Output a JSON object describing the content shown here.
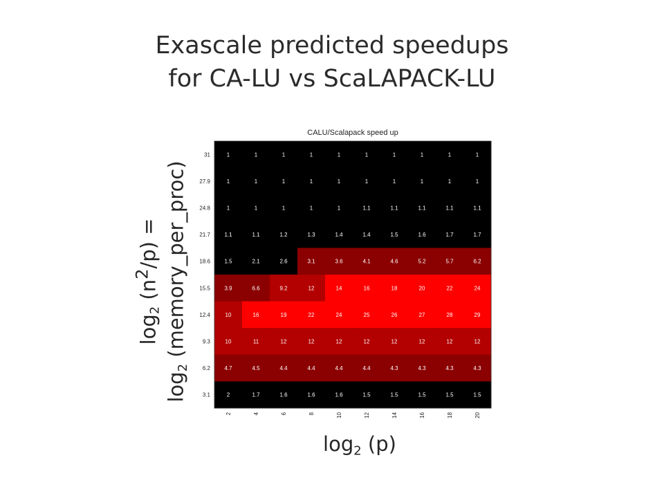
{
  "slide": {
    "title_line1": "Exascale  predicted speedups",
    "title_line2": "for CA-LU vs ScaLAPACK-LU",
    "ylabel_line1_prefix": "log",
    "ylabel_line1_sub": "2",
    "ylabel_line1_mid": " (n",
    "ylabel_line1_sup": "2",
    "ylabel_line1_suffix": "/p) =",
    "ylabel_line2_prefix": "log",
    "ylabel_line2_sub": "2",
    "ylabel_line2_suffix": " (memory_per_proc)",
    "xlabel_prefix": "log",
    "xlabel_sub": "2",
    "xlabel_suffix": " (p)"
  },
  "chart_data": {
    "type": "heatmap",
    "title": "CALU/Scalapack speed up",
    "x_ticks": [
      "2",
      "4",
      "6",
      "8",
      "10",
      "12",
      "14",
      "16",
      "18",
      "20"
    ],
    "y_ticks": [
      "31",
      "27.9",
      "24.8",
      "21.7",
      "18.6",
      "15.5",
      "12.4",
      "9.3",
      "6.2",
      "3.1"
    ],
    "cells": [
      [
        "1",
        "1",
        "1",
        "1",
        "1",
        "1",
        "1",
        "1",
        "1",
        "1"
      ],
      [
        "1",
        "1",
        "1",
        "1",
        "1",
        "1",
        "1",
        "1",
        "1",
        "1"
      ],
      [
        "1",
        "1",
        "1",
        "1",
        "1",
        "1.1",
        "1.1",
        "1.1",
        "1.1",
        "1.1"
      ],
      [
        "1.1",
        "1.1",
        "1.2",
        "1.3",
        "1.4",
        "1.4",
        "1.5",
        "1.6",
        "1.7",
        "1.7"
      ],
      [
        "1.5",
        "2.1",
        "2.6",
        "3.1",
        "3.6",
        "4.1",
        "4.6",
        "5.2",
        "5.7",
        "6.2"
      ],
      [
        "3.9",
        "6.6",
        "9.2",
        "12",
        "14",
        "16",
        "18",
        "20",
        "22",
        "24"
      ],
      [
        "10",
        "16",
        "19",
        "22",
        "24",
        "25",
        "26",
        "27",
        "28",
        "29"
      ],
      [
        "10",
        "11",
        "12",
        "12",
        "12",
        "12",
        "12",
        "12",
        "12",
        "12"
      ],
      [
        "4.7",
        "4.5",
        "4.4",
        "4.4",
        "4.4",
        "4.4",
        "4.3",
        "4.3",
        "4.3",
        "4.3"
      ],
      [
        "2",
        "1.7",
        "1.6",
        "1.6",
        "1.6",
        "1.5",
        "1.5",
        "1.5",
        "1.5",
        "1.5"
      ]
    ],
    "colors": {
      "low": "#000000",
      "mid": "#8b0000",
      "midplus": "#b30000",
      "high": "#ff0000",
      "cell_text": "#ffffff",
      "tick_text": "#222222"
    }
  }
}
